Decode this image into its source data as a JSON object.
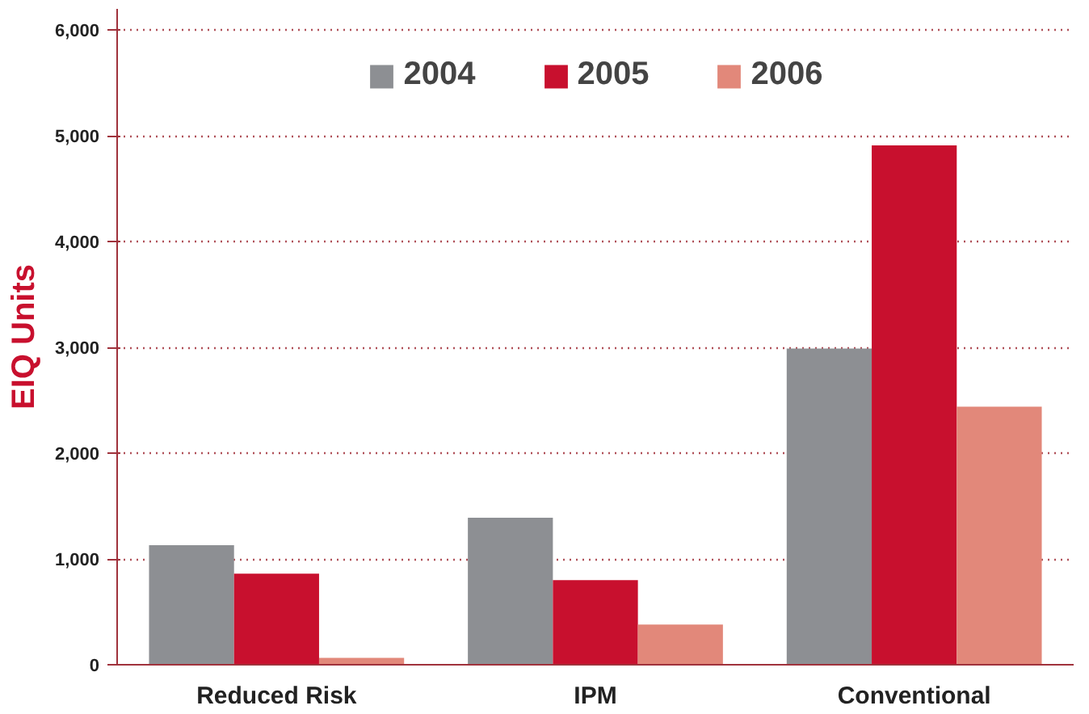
{
  "chart_data": {
    "type": "bar",
    "ylabel": "EIQ Units",
    "categories": [
      "Reduced Risk",
      "IPM",
      "Conventional"
    ],
    "series": [
      {
        "name": "2004",
        "color": "#8d8f93",
        "values": [
          1130,
          1390,
          2990
        ]
      },
      {
        "name": "2005",
        "color": "#c8102e",
        "values": [
          860,
          800,
          4910
        ]
      },
      {
        "name": "2006",
        "color": "#e2887a",
        "values": [
          65,
          380,
          2440
        ]
      }
    ],
    "ylim": [
      0,
      6200
    ],
    "yticks": [
      0,
      {
        "value": 1000,
        "label": "1,000"
      },
      {
        "value": 2000,
        "label": "2,000"
      },
      {
        "value": 3000,
        "label": "3,000"
      },
      {
        "value": 4000,
        "label": "4,000"
      },
      {
        "value": 5000,
        "label": "5,000"
      },
      {
        "value": 6000,
        "label": "6,000"
      }
    ],
    "grid": "y",
    "legend": "top"
  }
}
